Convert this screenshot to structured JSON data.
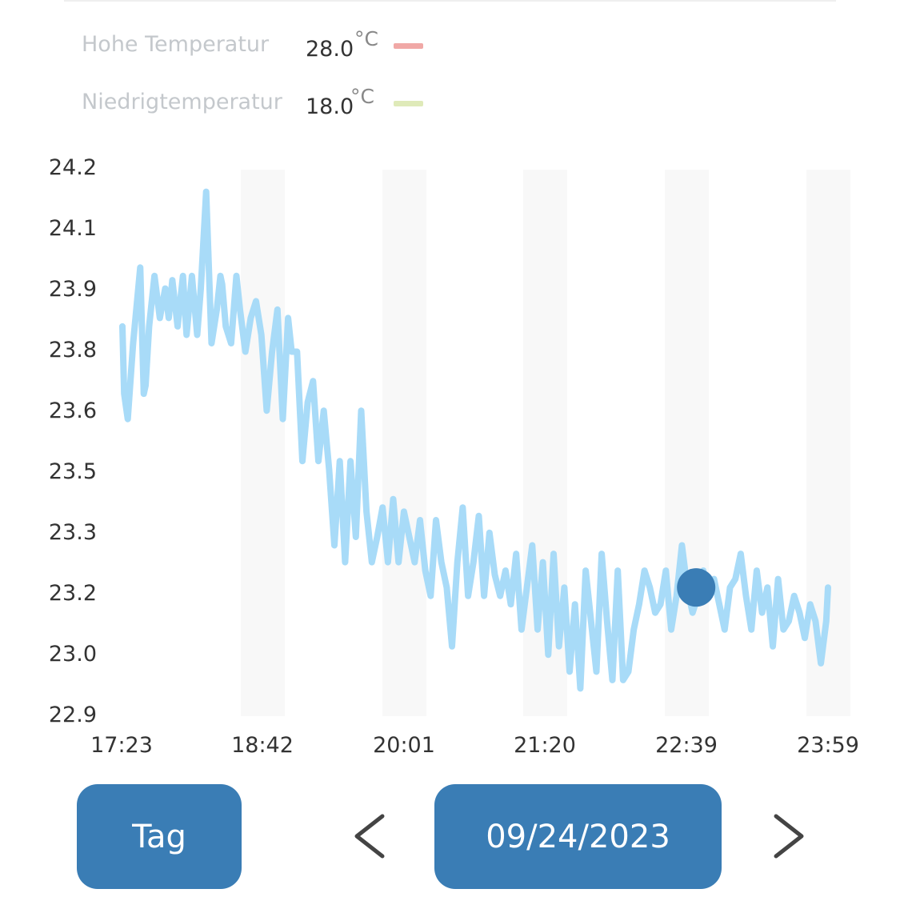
{
  "legend": {
    "high": {
      "label": "Hohe Temperatur",
      "value": "28.0",
      "unit": "°C",
      "color": "#f0a8a6"
    },
    "low": {
      "label": "Niedrigtemperatur",
      "value": "18.0",
      "unit": "°C",
      "color": "#dfeab9"
    }
  },
  "chart_data": {
    "type": "line",
    "x_tick_labels": [
      "17:23",
      "18:42",
      "20:01",
      "21:20",
      "22:39",
      "23:59"
    ],
    "y_tick_labels": [
      "24.2",
      "24.1",
      "23.9",
      "23.8",
      "23.6",
      "23.5",
      "23.3",
      "23.2",
      "23.0",
      "22.9"
    ],
    "ylim": [
      22.9,
      24.2
    ],
    "line_color": "#a8dbf8",
    "marker_color": "#3a7db5",
    "x_minutes": [
      0,
      1,
      3,
      6,
      10,
      12,
      13,
      15,
      18,
      21,
      24,
      26,
      28,
      31,
      34,
      36,
      39,
      42,
      44,
      47,
      50,
      53,
      55,
      56,
      58,
      61,
      64,
      66,
      69,
      72,
      75,
      78,
      81,
      84,
      87,
      90,
      93,
      95,
      98,
      101,
      104,
      107,
      110,
      113,
      116,
      119,
      122,
      125,
      128,
      131,
      134,
      137,
      140,
      143,
      146,
      149,
      152,
      155,
      158,
      161,
      164,
      167,
      170,
      173,
      176,
      179,
      182,
      185,
      188,
      191,
      194,
      197,
      200,
      203,
      206,
      209,
      212,
      215,
      218,
      221,
      224,
      227,
      230,
      233,
      236,
      239,
      242,
      245,
      248,
      251,
      254,
      257,
      260,
      263,
      266,
      269,
      272,
      275,
      278,
      281,
      284,
      287,
      290,
      293,
      296,
      299,
      302,
      305,
      308,
      311,
      314,
      317,
      320,
      323,
      326,
      329,
      332,
      335,
      338,
      341,
      344,
      347,
      350,
      353,
      356,
      359,
      362,
      365,
      368,
      371,
      374,
      377,
      380,
      383,
      386,
      389,
      392,
      395,
      396
    ],
    "values": [
      23.82,
      23.66,
      23.6,
      23.78,
      23.96,
      23.66,
      23.68,
      23.82,
      23.94,
      23.84,
      23.91,
      23.84,
      23.93,
      23.82,
      23.94,
      23.8,
      23.94,
      23.8,
      23.91,
      24.14,
      23.78,
      23.86,
      23.94,
      23.92,
      23.82,
      23.78,
      23.94,
      23.86,
      23.76,
      23.84,
      23.88,
      23.8,
      23.62,
      23.76,
      23.86,
      23.6,
      23.84,
      23.76,
      23.76,
      23.5,
      23.64,
      23.69,
      23.5,
      23.62,
      23.48,
      23.3,
      23.5,
      23.26,
      23.5,
      23.32,
      23.62,
      23.38,
      23.26,
      23.32,
      23.39,
      23.26,
      23.41,
      23.26,
      23.38,
      23.32,
      23.26,
      23.36,
      23.24,
      23.18,
      23.36,
      23.26,
      23.2,
      23.06,
      23.26,
      23.39,
      23.18,
      23.26,
      23.37,
      23.18,
      23.33,
      23.23,
      23.18,
      23.24,
      23.16,
      23.28,
      23.1,
      23.2,
      23.3,
      23.1,
      23.26,
      23.04,
      23.28,
      23.06,
      23.2,
      23.0,
      23.16,
      22.96,
      23.24,
      23.12,
      23.0,
      23.28,
      23.12,
      22.98,
      23.24,
      22.98,
      23.0,
      23.1,
      23.16,
      23.24,
      23.2,
      23.14,
      23.16,
      23.24,
      23.1,
      23.18,
      23.3,
      23.2,
      23.14,
      23.18,
      23.24,
      23.18,
      23.22,
      23.16,
      23.1,
      23.2,
      23.22,
      23.28,
      23.18,
      23.1,
      23.24,
      23.14,
      23.2,
      23.06,
      23.22,
      23.1,
      23.12,
      23.18,
      23.14,
      23.08,
      23.16,
      23.12,
      23.02,
      23.12,
      23.2
    ],
    "marker": {
      "x_minutes": 322,
      "value": 23.2
    }
  },
  "buttons": {
    "range": "Tag",
    "date": "09/24/2023"
  }
}
